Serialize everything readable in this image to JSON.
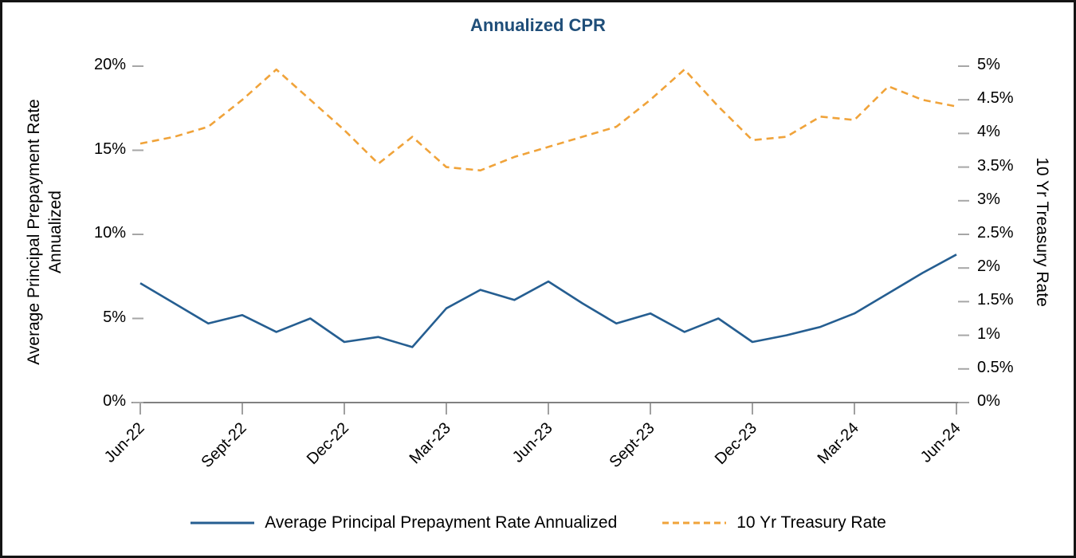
{
  "chart_data": {
    "type": "line",
    "title": "Annualized CPR",
    "title_color": "#1F4E79",
    "grid": false,
    "x": [
      "Jun-22",
      "Jul-22",
      "Aug-22",
      "Sept-22",
      "Oct-22",
      "Nov-22",
      "Dec-22",
      "Jan-23",
      "Feb-23",
      "Mar-23",
      "Apr-23",
      "May-23",
      "Jun-23",
      "Jul-23",
      "Aug-23",
      "Sept-23",
      "Oct-23",
      "Nov-23",
      "Dec-23",
      "Jan-24",
      "Feb-24",
      "Mar-24",
      "Apr-24",
      "May-24",
      "Jun-24"
    ],
    "x_ticks": [
      {
        "index": 0,
        "label": "Jun-22"
      },
      {
        "index": 3,
        "label": "Sept-22"
      },
      {
        "index": 6,
        "label": "Dec-22"
      },
      {
        "index": 9,
        "label": "Mar-23"
      },
      {
        "index": 12,
        "label": "Jun-23"
      },
      {
        "index": 15,
        "label": "Sept-23"
      },
      {
        "index": 18,
        "label": "Dec-23"
      },
      {
        "index": 21,
        "label": "Mar-24"
      },
      {
        "index": 24,
        "label": "Jun-24"
      }
    ],
    "left_axis": {
      "label_line1": "Average Principal Prepayment Rate",
      "label_line2": "Annualized",
      "range": [
        0,
        20
      ],
      "ticks": [
        {
          "value": 0,
          "label": "0%"
        },
        {
          "value": 5,
          "label": "5%"
        },
        {
          "value": 10,
          "label": "10%"
        },
        {
          "value": 15,
          "label": "15%"
        },
        {
          "value": 20,
          "label": "20%"
        }
      ]
    },
    "right_axis": {
      "label": "10 Yr Treasury Rate",
      "range": [
        0,
        5
      ],
      "ticks": [
        {
          "value": 0,
          "label": "0%"
        },
        {
          "value": 0.5,
          "label": "0.5%"
        },
        {
          "value": 1,
          "label": "1%"
        },
        {
          "value": 1.5,
          "label": "1.5%"
        },
        {
          "value": 2,
          "label": "2%"
        },
        {
          "value": 2.5,
          "label": "2.5%"
        },
        {
          "value": 3,
          "label": "3%"
        },
        {
          "value": 3.5,
          "label": "3.5%"
        },
        {
          "value": 4,
          "label": "4%"
        },
        {
          "value": 4.5,
          "label": "4.5%"
        },
        {
          "value": 5,
          "label": "5%"
        }
      ]
    },
    "series": [
      {
        "name": "Average Principal Prepayment Rate Annualized",
        "axis": "left",
        "style": "solid",
        "color": "#255E91",
        "values": [
          7.1,
          5.9,
          4.7,
          5.2,
          4.2,
          5.0,
          3.6,
          3.9,
          3.3,
          5.6,
          6.7,
          6.1,
          7.2,
          5.9,
          4.7,
          5.3,
          4.2,
          5.0,
          3.6,
          4.0,
          4.5,
          5.3,
          6.5,
          7.7,
          8.8
        ]
      },
      {
        "name": "10 Yr Treasury Rate",
        "axis": "right",
        "style": "dashed",
        "color": "#F0A33A",
        "values": [
          3.85,
          3.95,
          4.1,
          4.5,
          4.95,
          4.5,
          4.05,
          3.55,
          3.95,
          3.5,
          3.45,
          3.65,
          3.8,
          3.95,
          4.1,
          4.5,
          4.95,
          4.4,
          3.9,
          3.95,
          4.25,
          4.2,
          4.7,
          4.5,
          4.4
        ]
      }
    ],
    "legend": {
      "position": "bottom"
    },
    "axis_line_color": "#808080",
    "tick_color": "#A6A6A6"
  }
}
